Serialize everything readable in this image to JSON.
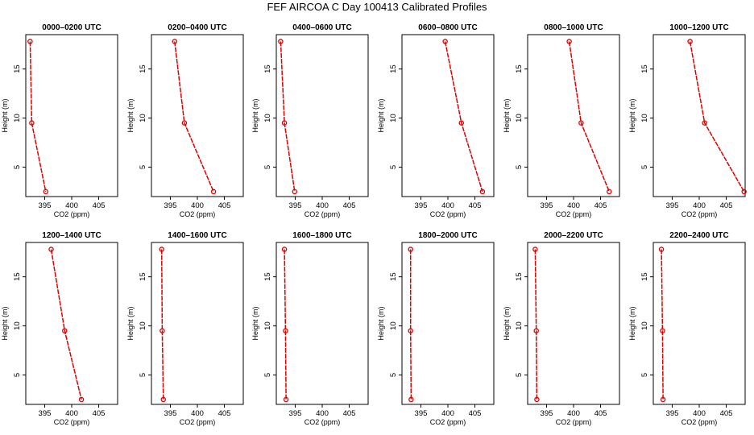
{
  "figure": {
    "title": "FEF AIRCOA C  Day 100413  Calibrated Profiles"
  },
  "colors": {
    "series": "#dd0000",
    "axes": "#000000",
    "background": "#ffffff"
  },
  "chart_data": [
    {
      "type": "line",
      "title": "0000–0200 UTC",
      "xlabel": "CO2 (ppm)",
      "ylabel": "Height (m)",
      "xlim": [
        391.5,
        408.5
      ],
      "ylim": [
        2,
        18.5
      ],
      "xticks": [
        "395",
        "400",
        "405"
      ],
      "yticks": [
        "5",
        "10",
        "15"
      ],
      "series": [
        {
          "x": [
            392.3,
            392.6,
            395.2
          ],
          "y": [
            17.8,
            9.5,
            2.5
          ]
        }
      ]
    },
    {
      "type": "line",
      "title": "0200–0400 UTC",
      "xlabel": "CO2 (ppm)",
      "ylabel": "Height (m)",
      "xlim": [
        391.5,
        408.5
      ],
      "ylim": [
        2,
        18.5
      ],
      "xticks": [
        "395",
        "400",
        "405"
      ],
      "yticks": [
        "5",
        "10",
        "15"
      ],
      "series": [
        {
          "x": [
            395.8,
            397.6,
            403.0
          ],
          "y": [
            17.8,
            9.5,
            2.5
          ]
        }
      ]
    },
    {
      "type": "line",
      "title": "0400–0600 UTC",
      "xlabel": "CO2 (ppm)",
      "ylabel": "Height (m)",
      "xlim": [
        391.5,
        408.5
      ],
      "ylim": [
        2,
        18.5
      ],
      "xticks": [
        "395",
        "400",
        "405"
      ],
      "yticks": [
        "5",
        "10",
        "15"
      ],
      "series": [
        {
          "x": [
            392.3,
            393.0,
            394.9
          ],
          "y": [
            17.8,
            9.5,
            2.5
          ]
        }
      ]
    },
    {
      "type": "line",
      "title": "0600–0800 UTC",
      "xlabel": "CO2 (ppm)",
      "ylabel": "Height (m)",
      "xlim": [
        391.5,
        408.5
      ],
      "ylim": [
        2,
        18.5
      ],
      "xticks": [
        "395",
        "400",
        "405"
      ],
      "yticks": [
        "5",
        "10",
        "15"
      ],
      "series": [
        {
          "x": [
            399.5,
            402.5,
            406.4
          ],
          "y": [
            17.8,
            9.5,
            2.5
          ]
        }
      ]
    },
    {
      "type": "line",
      "title": "0800–1000 UTC",
      "xlabel": "CO2 (ppm)",
      "ylabel": "Height (m)",
      "xlim": [
        391.5,
        408.5
      ],
      "ylim": [
        2,
        18.5
      ],
      "xticks": [
        "395",
        "400",
        "405"
      ],
      "yticks": [
        "5",
        "10",
        "15"
      ],
      "series": [
        {
          "x": [
            399.2,
            401.4,
            406.6
          ],
          "y": [
            17.8,
            9.5,
            2.5
          ]
        }
      ]
    },
    {
      "type": "line",
      "title": "1000–1200 UTC",
      "xlabel": "CO2 (ppm)",
      "ylabel": "Height (m)",
      "xlim": [
        391.5,
        408.5
      ],
      "ylim": [
        2,
        18.5
      ],
      "xticks": [
        "395",
        "400",
        "405"
      ],
      "yticks": [
        "5",
        "10",
        "15"
      ],
      "series": [
        {
          "x": [
            398.3,
            401.0,
            408.3
          ],
          "y": [
            17.8,
            9.5,
            2.5
          ]
        }
      ]
    },
    {
      "type": "line",
      "title": "1200–1400 UTC",
      "xlabel": "CO2 (ppm)",
      "ylabel": "Height (m)",
      "xlim": [
        391.5,
        408.5
      ],
      "ylim": [
        2,
        18.5
      ],
      "xticks": [
        "395",
        "400",
        "405"
      ],
      "yticks": [
        "5",
        "10",
        "15"
      ],
      "series": [
        {
          "x": [
            396.2,
            398.7,
            401.8
          ],
          "y": [
            17.8,
            9.5,
            2.5
          ]
        }
      ]
    },
    {
      "type": "line",
      "title": "1400–1600 UTC",
      "xlabel": "CO2 (ppm)",
      "ylabel": "Height (m)",
      "xlim": [
        391.5,
        408.5
      ],
      "ylim": [
        2,
        18.5
      ],
      "xticks": [
        "395",
        "400",
        "405"
      ],
      "yticks": [
        "5",
        "10",
        "15"
      ],
      "series": [
        {
          "x": [
            393.4,
            393.5,
            393.7
          ],
          "y": [
            17.8,
            9.5,
            2.5
          ]
        }
      ]
    },
    {
      "type": "line",
      "title": "1600–1800 UTC",
      "xlabel": "CO2 (ppm)",
      "ylabel": "Height (m)",
      "xlim": [
        391.5,
        408.5
      ],
      "ylim": [
        2,
        18.5
      ],
      "xticks": [
        "395",
        "400",
        "405"
      ],
      "yticks": [
        "5",
        "10",
        "15"
      ],
      "series": [
        {
          "x": [
            393.0,
            393.2,
            393.3
          ],
          "y": [
            17.8,
            9.5,
            2.5
          ]
        }
      ]
    },
    {
      "type": "line",
      "title": "1800–2000 UTC",
      "xlabel": "CO2 (ppm)",
      "ylabel": "Height (m)",
      "xlim": [
        391.5,
        408.5
      ],
      "ylim": [
        2,
        18.5
      ],
      "xticks": [
        "395",
        "400",
        "405"
      ],
      "yticks": [
        "5",
        "10",
        "15"
      ],
      "series": [
        {
          "x": [
            393.1,
            393.1,
            393.2
          ],
          "y": [
            17.8,
            9.5,
            2.5
          ]
        }
      ]
    },
    {
      "type": "line",
      "title": "2000–2200 UTC",
      "xlabel": "CO2 (ppm)",
      "ylabel": "Height (m)",
      "xlim": [
        391.5,
        408.5
      ],
      "ylim": [
        2,
        18.5
      ],
      "xticks": [
        "395",
        "400",
        "405"
      ],
      "yticks": [
        "5",
        "10",
        "15"
      ],
      "series": [
        {
          "x": [
            392.9,
            393.1,
            393.2
          ],
          "y": [
            17.8,
            9.5,
            2.5
          ]
        }
      ]
    },
    {
      "type": "line",
      "title": "2200–2400 UTC",
      "xlabel": "CO2 (ppm)",
      "ylabel": "Height (m)",
      "xlim": [
        391.5,
        408.5
      ],
      "ylim": [
        2,
        18.5
      ],
      "xticks": [
        "395",
        "400",
        "405"
      ],
      "yticks": [
        "5",
        "10",
        "15"
      ],
      "series": [
        {
          "x": [
            393.0,
            393.2,
            393.3
          ],
          "y": [
            17.8,
            9.5,
            2.5
          ]
        }
      ]
    }
  ]
}
